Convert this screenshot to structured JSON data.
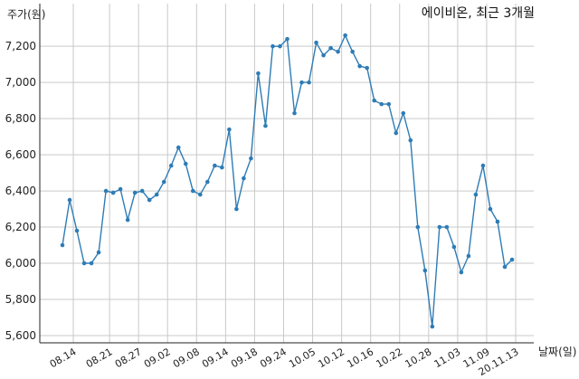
{
  "chart_data": {
    "type": "line",
    "title": "에이비온, 최근 3개월",
    "ylabel": "주가(원)",
    "xlabel": "날짜(일)",
    "ylim": [
      5600,
      7300
    ],
    "yticks": [
      5600,
      5800,
      6000,
      6200,
      6400,
      6600,
      6800,
      7000,
      7200
    ],
    "ytick_labels": [
      "5,600",
      "5,800",
      "6,000",
      "6,200",
      "6,400",
      "6,600",
      "6,800",
      "7,000",
      "7,200"
    ],
    "x_ticks": [
      {
        "label": "08.14",
        "index": 1.5
      },
      {
        "label": "08.21",
        "index": 6.5
      },
      {
        "label": "08.27",
        "index": 10.5
      },
      {
        "label": "09.02",
        "index": 14.5
      },
      {
        "label": "09.08",
        "index": 18.5
      },
      {
        "label": "09.14",
        "index": 22.5
      },
      {
        "label": "09.18",
        "index": 26.5
      },
      {
        "label": "09.24",
        "index": 30.5
      },
      {
        "label": "10.05",
        "index": 34.5
      },
      {
        "label": "10.12",
        "index": 38.5
      },
      {
        "label": "10.16",
        "index": 42.5
      },
      {
        "label": "10.22",
        "index": 46.5
      },
      {
        "label": "10.28",
        "index": 50.5
      },
      {
        "label": "11.03",
        "index": 54.5
      },
      {
        "label": "11.09",
        "index": 58.5
      },
      {
        "label": "20.11.13",
        "index": 62.5
      }
    ],
    "grid": true,
    "legend": "none",
    "color": "#2e7cb5",
    "series": [
      {
        "values": [
          6100,
          6350,
          6180,
          6000,
          6000,
          6060,
          6400,
          6390,
          6410,
          6240,
          6390,
          6400,
          6350,
          6380,
          6450,
          6540,
          6640,
          6550,
          6400,
          6380,
          6450,
          6540,
          6530,
          6740,
          6300,
          6470,
          6580,
          7050,
          6760,
          7200,
          7200,
          7240,
          6830,
          7000,
          7000,
          7220,
          7150,
          7190,
          7170,
          7260,
          7170,
          7090,
          7080,
          6900,
          6880,
          6880,
          6720,
          6830,
          6680,
          6200,
          5960,
          5650,
          6200,
          6200,
          6090,
          5950,
          6040,
          6380,
          6540,
          6300,
          6230,
          5980,
          6020
        ]
      }
    ]
  }
}
